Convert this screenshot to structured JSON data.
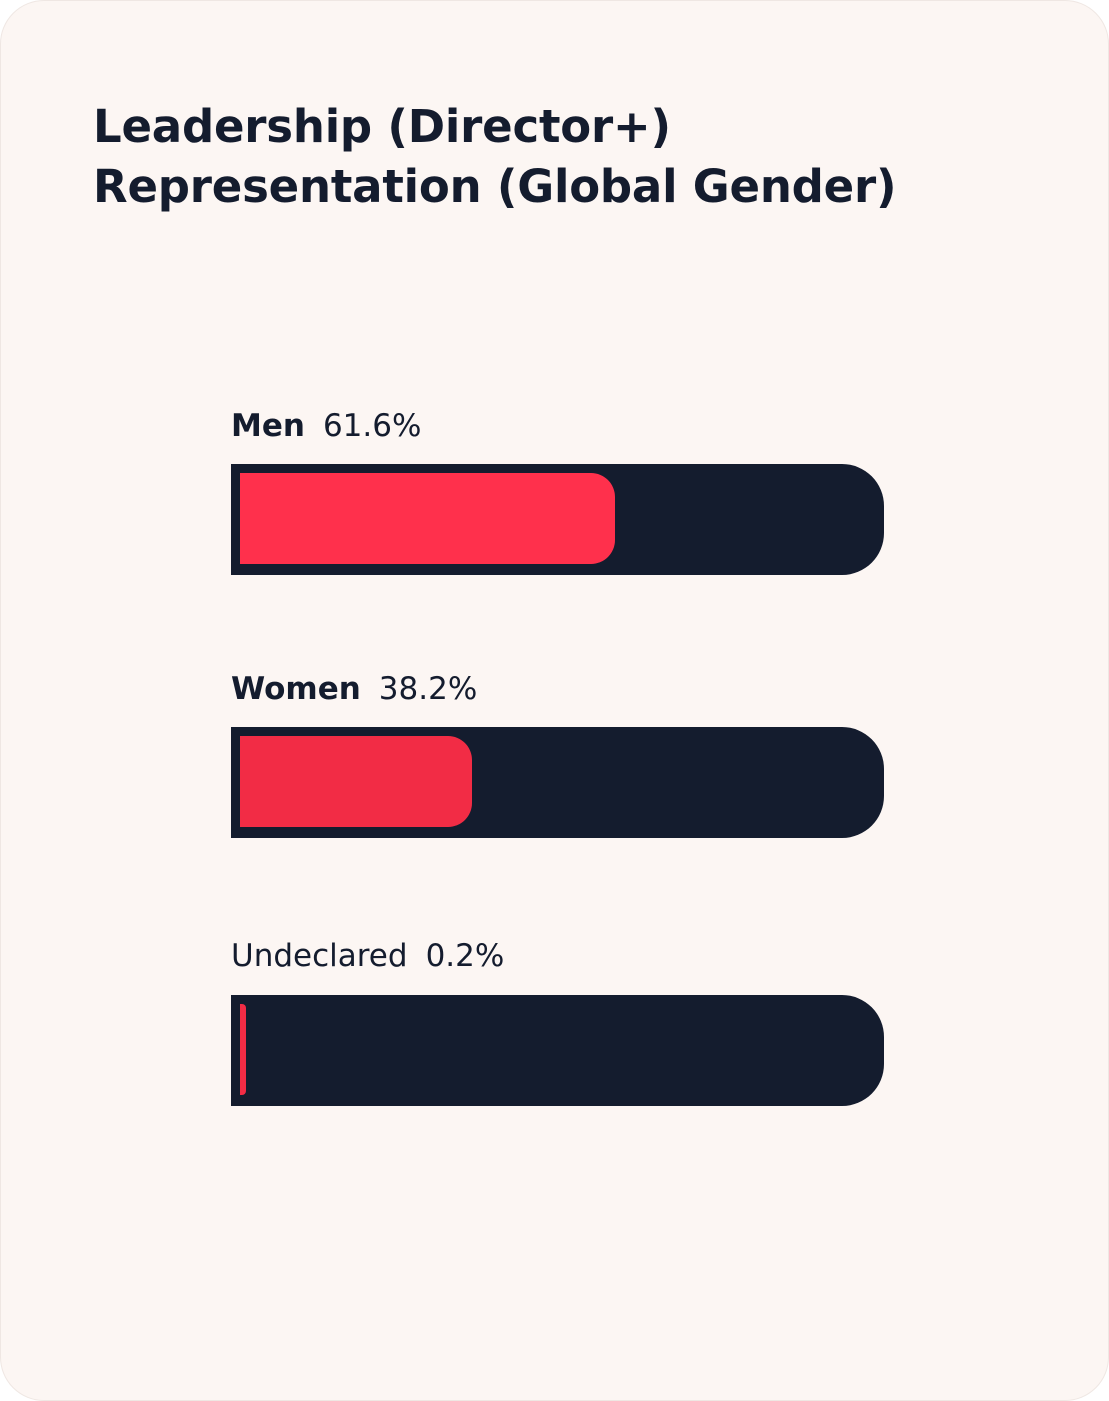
{
  "title": {
    "line1": "Leadership (Director+)",
    "line2": "Representation (Global Gender)"
  },
  "colors": {
    "background": "#fcf6f3",
    "track": "#141c2e",
    "text": "#141c2e"
  },
  "chart_data": {
    "type": "bar",
    "orientation": "horizontal",
    "title": "Leadership (Director+) Representation (Global Gender)",
    "categories": [
      "Men",
      "Women",
      "Undeclared"
    ],
    "values": [
      61.6,
      38.2,
      0.2
    ],
    "value_labels": [
      "61.6%",
      "38.2%",
      "0.2%"
    ],
    "xlim": [
      0,
      100
    ],
    "unit": "%",
    "grid": false,
    "bar_colors": [
      "#ff304c",
      "#f22c45",
      "#f22c45"
    ]
  }
}
